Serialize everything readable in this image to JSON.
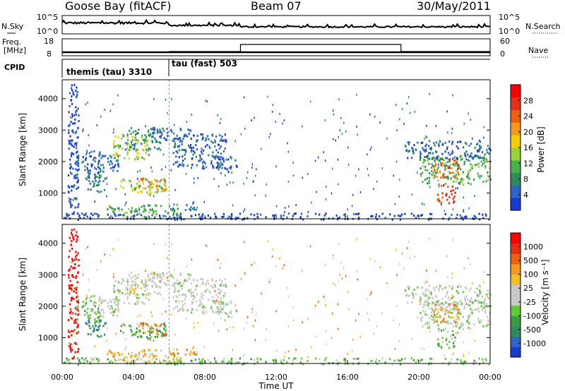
{
  "header": {
    "site": "Goose Bay (fitACF)",
    "beam": "Beam 07",
    "date": "30/May/2011"
  },
  "top_panels": {
    "nsky": {
      "label": "N.Sky",
      "ticks": [
        "10^5",
        "10^0"
      ]
    },
    "nsearch": {
      "label": "N.Search",
      "ticks": [
        "10^5",
        "10^0"
      ]
    },
    "freq": {
      "label_1": "Freq.",
      "label_2": "[MHz]",
      "ticks": [
        "18",
        "8"
      ]
    },
    "nave": {
      "label": "Nave",
      "ticks": [
        "60",
        "0"
      ]
    },
    "cpid": {
      "label": "CPID",
      "segments": [
        {
          "name": "themis (tau) 3310",
          "start_hour": 0,
          "end_hour": 6
        },
        {
          "name": "tau (fast) 503",
          "start_hour": 6,
          "end_hour": 24
        }
      ]
    }
  },
  "chart_data": [
    {
      "type": "heatmap",
      "title": "",
      "xlabel": "Time UT",
      "ylabel": "Slant Range [km]",
      "x_ticks": [
        "00:00",
        "04:00",
        "08:00",
        "12:00",
        "16:00",
        "20:00",
        "00:00"
      ],
      "y_ticks": [
        1000,
        2000,
        3000,
        4000
      ],
      "xlim_hours": [
        0,
        24
      ],
      "ylim_km": [
        180,
        4600
      ],
      "colorbar": {
        "label": "Power [dB]",
        "ticks": [
          "4",
          "8",
          "12",
          "16",
          "20",
          "24",
          "28"
        ],
        "colors": [
          "#1a3ccc",
          "#2e63c8",
          "#2e8c5a",
          "#48b04a",
          "#9ad23a",
          "#f2d000",
          "#f49a20",
          "#ee6010",
          "#e03018",
          "#ff0000"
        ]
      }
    },
    {
      "type": "heatmap",
      "title": "",
      "xlabel": "Time UT",
      "ylabel": "Slant Range [km]",
      "x_ticks": [
        "00:00",
        "04:00",
        "08:00",
        "12:00",
        "16:00",
        "20:00",
        "00:00"
      ],
      "y_ticks": [
        1000,
        2000,
        3000,
        4000
      ],
      "xlim_hours": [
        0,
        24
      ],
      "ylim_km": [
        180,
        4600
      ],
      "colorbar": {
        "label": "Velocity [m s⁻¹]",
        "ticks": [
          "1000",
          "500",
          "100",
          "25",
          "-25",
          "-100",
          "-500",
          "-1000"
        ],
        "colors": [
          "#1a3ccc",
          "#2e63c8",
          "#2e8c5a",
          "#3a9a44",
          "#62c83c",
          "#c8c8c8",
          "#c8c8c8",
          "#f0c028",
          "#f49a20",
          "#ee6010",
          "#e03018",
          "#ff0000"
        ]
      }
    }
  ],
  "data_patches": [
    {
      "t0": 0.7,
      "t1": 2.2,
      "r0": 1500,
      "r1": 2400,
      "p": 1,
      "v": 4
    },
    {
      "t0": 1.2,
      "t1": 2.4,
      "r0": 1050,
      "r1": 1600,
      "p": 2,
      "v": 2
    },
    {
      "t0": 2.0,
      "t1": 3.2,
      "r0": 1700,
      "r1": 2300,
      "p": 1,
      "v": 5
    },
    {
      "t0": 2.8,
      "t1": 4.8,
      "r0": 2100,
      "r1": 2900,
      "p": 4,
      "v": 5
    },
    {
      "t0": 3.5,
      "t1": 5.5,
      "r0": 2400,
      "r1": 3100,
      "p": 2,
      "v": 6
    },
    {
      "t0": 5.0,
      "t1": 7.2,
      "r0": 2700,
      "r1": 3100,
      "p": 1,
      "v": 5
    },
    {
      "t0": 6.2,
      "t1": 9.2,
      "r0": 1800,
      "r1": 2900,
      "p": 1,
      "v": 5
    },
    {
      "t0": 3.2,
      "t1": 5.8,
      "r0": 1000,
      "r1": 1500,
      "p": 4,
      "v": 3
    },
    {
      "t0": 4.2,
      "t1": 5.8,
      "r0": 1100,
      "r1": 1500,
      "p": 6,
      "v": 8
    },
    {
      "t0": 2.5,
      "t1": 6.5,
      "r0": 250,
      "r1": 650,
      "p": 3,
      "v": 7
    },
    {
      "t0": 6.0,
      "t1": 7.5,
      "r0": 450,
      "r1": 700,
      "p": 2,
      "v": 8
    },
    {
      "t0": 8.5,
      "t1": 9.8,
      "r0": 1700,
      "r1": 2200,
      "p": 1,
      "v": 5
    },
    {
      "t0": 20.0,
      "t1": 24.0,
      "r0": 1300,
      "r1": 2200,
      "p": 3,
      "v": 5
    },
    {
      "t0": 20.8,
      "t1": 22.2,
      "r0": 1500,
      "r1": 2100,
      "p": 7,
      "v": 8
    },
    {
      "t0": 21.0,
      "t1": 22.0,
      "r0": 700,
      "r1": 1300,
      "p": 8,
      "v": 4
    },
    {
      "t0": 19.2,
      "t1": 24.0,
      "r0": 2100,
      "r1": 2700,
      "p": 1,
      "v": 5
    },
    {
      "t0": 0.0,
      "t1": 24.0,
      "r0": 180,
      "r1": 380,
      "p": 0,
      "v": 4
    },
    {
      "t0": 0.3,
      "t1": 0.9,
      "r0": 300,
      "r1": 4500,
      "p": 0,
      "v": 11
    }
  ]
}
